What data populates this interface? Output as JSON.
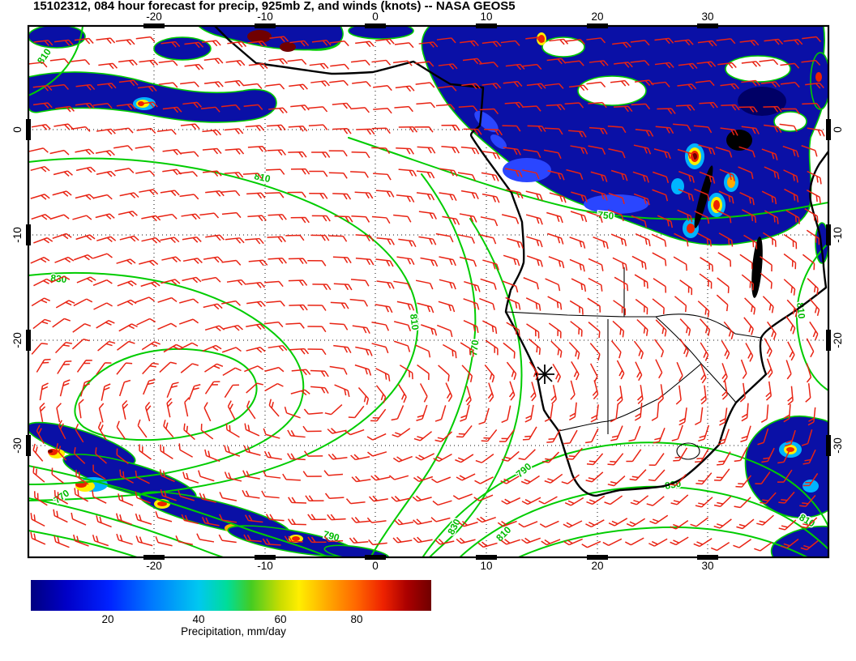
{
  "title": "15102312, 084 hour forecast for precip, 925mb Z, and winds (knots) -- NASA GEOS5",
  "axes": {
    "lon_ticks": [
      "-20",
      "-10",
      "0",
      "10",
      "20",
      "30"
    ],
    "lat_ticks": [
      "0",
      "-10",
      "-20",
      "-30"
    ]
  },
  "contours": {
    "field": "925mb Z",
    "labels": [
      "810",
      "810",
      "830",
      "830",
      "770",
      "810",
      "750",
      "790",
      "830",
      "810",
      "810",
      "830",
      "790",
      "810",
      "770"
    ]
  },
  "colorbar": {
    "ticks": [
      "20",
      "40",
      "60",
      "80"
    ],
    "label": "Precipitation, mm/day"
  },
  "colors": {
    "precip_deep_blue": "#0a10a6",
    "contour_green": "#00cc00",
    "wind_barb_red": "#e82313"
  },
  "chart_data": {
    "type": "map",
    "title": "15102312, 084 hour forecast for precip, 925mb Z, and winds (knots) -- NASA GEOS5",
    "model": "NASA GEOS5",
    "init_time": "15102312",
    "forecast_hour": "084",
    "lon_ticks": [
      -20,
      -10,
      0,
      10,
      20,
      30
    ],
    "lat_ticks": [
      0,
      -10,
      -20,
      -30
    ],
    "fields": [
      {
        "name": "precipitation",
        "units": "mm/day",
        "render": "filled color shading",
        "colorbar_ticks": [
          20,
          40,
          60,
          80
        ]
      },
      {
        "name": "925mb geopotential height",
        "units": "m",
        "render": "green contour lines",
        "labeled_levels": [
          750,
          770,
          790,
          810,
          830
        ]
      },
      {
        "name": "wind",
        "units": "knots",
        "render": "red wind barbs"
      }
    ]
  }
}
